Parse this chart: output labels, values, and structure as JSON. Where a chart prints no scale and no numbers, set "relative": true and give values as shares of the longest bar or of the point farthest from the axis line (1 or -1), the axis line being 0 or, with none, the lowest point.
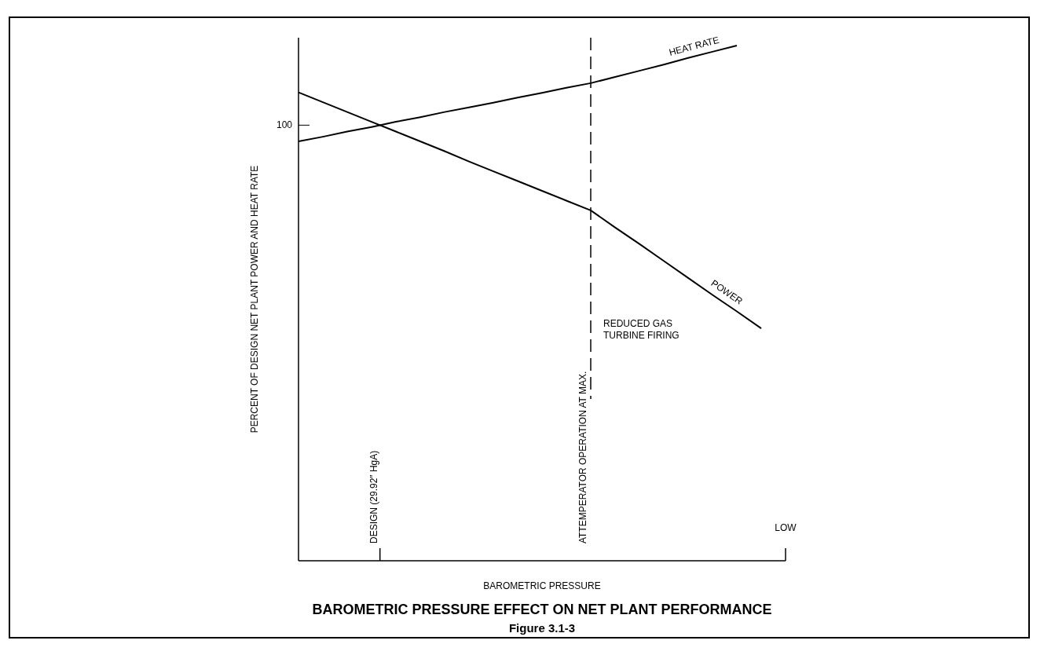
{
  "chart_data": {
    "type": "line",
    "title": "BAROMETRIC PRESSURE EFFECT ON NET PLANT PERFORMANCE",
    "subtitle": "Figure 3.1-3",
    "xlabel": "BAROMETRIC PRESSURE",
    "ylabel": "PERCENT OF DESIGN NET PLANT POWER AND HEAT RATE",
    "relative": true,
    "categories": [
      null,
      null,
      null,
      null,
      null,
      null,
      null,
      null,
      null,
      null,
      null,
      null,
      null,
      null,
      null,
      null,
      null,
      null,
      null,
      null,
      null
    ],
    "series": [
      {
        "name": "HEAT RATE",
        "color": "#000000",
        "values": [
          0.814,
          0.823,
          0.833,
          0.842,
          0.852,
          0.861,
          0.871,
          0.88,
          0.889,
          0.899,
          0.908,
          0.918,
          0.927,
          0.939,
          0.951,
          0.963,
          0.976,
          0.988,
          1.0,
          null,
          null
        ]
      },
      {
        "name": "POWER",
        "color": "#000000",
        "values": [
          0.909,
          0.89,
          0.871,
          0.852,
          0.833,
          0.814,
          0.795,
          0.775,
          0.756,
          0.737,
          0.718,
          0.699,
          0.68,
          0.647,
          0.615,
          0.582,
          0.549,
          0.516,
          0.484,
          0.451,
          null
        ]
      }
    ],
    "annotations": [
      "100",
      "DESIGN (29.92″ HgA)",
      "LOW",
      "REDUCED GAS TURBINE FIRING",
      "ATTEMPERATOR OPERATION AT MAX."
    ],
    "marker": "none",
    "line_style": "solid"
  }
}
